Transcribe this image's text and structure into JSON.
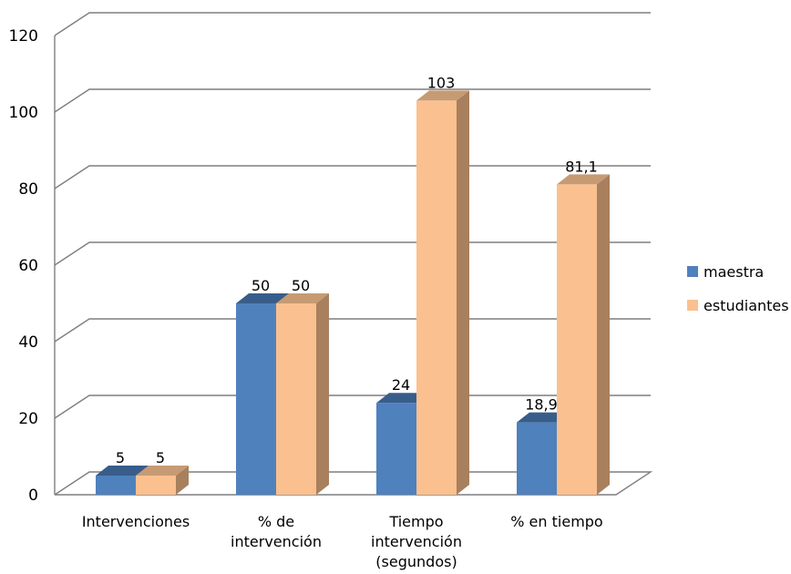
{
  "chart_data": {
    "type": "bar",
    "style": "3d-clustered-column",
    "categories": [
      [
        "Intervenciones"
      ],
      [
        "% de",
        "intervención"
      ],
      [
        "Tiempo",
        "intervención",
        "(segundos)"
      ],
      [
        "% en tiempo"
      ]
    ],
    "series": [
      {
        "name": "maestra",
        "values": [
          5,
          50,
          24,
          18.9
        ],
        "labels": [
          "5",
          "50",
          "24",
          "18,9"
        ],
        "color": "#4f81bd",
        "top_color": "#385d8a",
        "side_color": "#2f4f77"
      },
      {
        "name": "estudiantes",
        "values": [
          5,
          50,
          103,
          81.1
        ],
        "labels": [
          "5",
          "50",
          "103",
          "81,1"
        ],
        "color": "#fac08f",
        "top_color": "#c69b73",
        "side_color": "#a8805e"
      }
    ],
    "title": "",
    "xlabel": "",
    "ylabel": "",
    "ylim": [
      0,
      120
    ],
    "yticks": [
      0,
      20,
      40,
      60,
      80,
      100,
      120
    ],
    "grid": true,
    "legend_position": "right"
  }
}
